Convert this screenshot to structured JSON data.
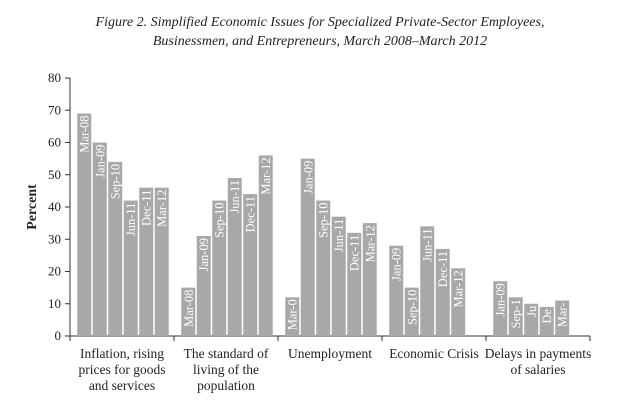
{
  "chart_data": {
    "type": "bar",
    "title_line1": "Figure 2. Simplified Economic Issues for Specialized Private-Sector Employees,",
    "title_line2": "Businessmen, and Entrepreneurs, March 2008–March 2012",
    "ylabel": "Percent",
    "ylim": [
      0,
      80
    ],
    "yticks": [
      0,
      10,
      20,
      30,
      40,
      50,
      60,
      70,
      80
    ],
    "grid": false,
    "bar_color": "#a8a8a8",
    "groups": [
      {
        "category_lines": [
          "Inflation, rising",
          "prices for goods",
          "and services"
        ],
        "bars": [
          {
            "label": "Mar-08",
            "value": 69
          },
          {
            "label": "Jan-09",
            "value": 60
          },
          {
            "label": "Sep-10",
            "value": 54
          },
          {
            "label": "Jun-11",
            "value": 42
          },
          {
            "label": "Dec-11",
            "value": 46
          },
          {
            "label": "Mar-12",
            "value": 46
          }
        ]
      },
      {
        "category_lines": [
          "The standard of",
          "living of the",
          "population"
        ],
        "bars": [
          {
            "label": "Mar-08",
            "value": 15
          },
          {
            "label": "Jan-09",
            "value": 31
          },
          {
            "label": "Sep-10",
            "value": 42
          },
          {
            "label": "Jun-11",
            "value": 49
          },
          {
            "label": "Dec-11",
            "value": 44
          },
          {
            "label": "Mar-12",
            "value": 56
          }
        ]
      },
      {
        "category_lines": [
          "Unemployment"
        ],
        "bars": [
          {
            "label": "Mar-0",
            "value": 12
          },
          {
            "label": "Jan-09",
            "value": 55
          },
          {
            "label": "Sep-10",
            "value": 42
          },
          {
            "label": "Jun-11",
            "value": 37
          },
          {
            "label": "Dec-11",
            "value": 32
          },
          {
            "label": "Mar-12",
            "value": 35
          }
        ]
      },
      {
        "category_lines": [
          "Economic Crisis"
        ],
        "bars": [
          {
            "label": "Jan-09",
            "value": 28
          },
          {
            "label": "Sep-10",
            "value": 15
          },
          {
            "label": "Jun-11",
            "value": 34
          },
          {
            "label": "Dec-11",
            "value": 27
          },
          {
            "label": "Mar-12",
            "value": 21
          }
        ]
      },
      {
        "category_lines": [
          "Delays in payments",
          "of salaries"
        ],
        "bars": [
          {
            "label": "Jan-09",
            "value": 17
          },
          {
            "label": "Sep-1",
            "value": 12
          },
          {
            "label": "Ju",
            "value": 10
          },
          {
            "label": "De",
            "value": 9
          },
          {
            "label": "Mar-",
            "value": 11
          }
        ]
      }
    ]
  }
}
